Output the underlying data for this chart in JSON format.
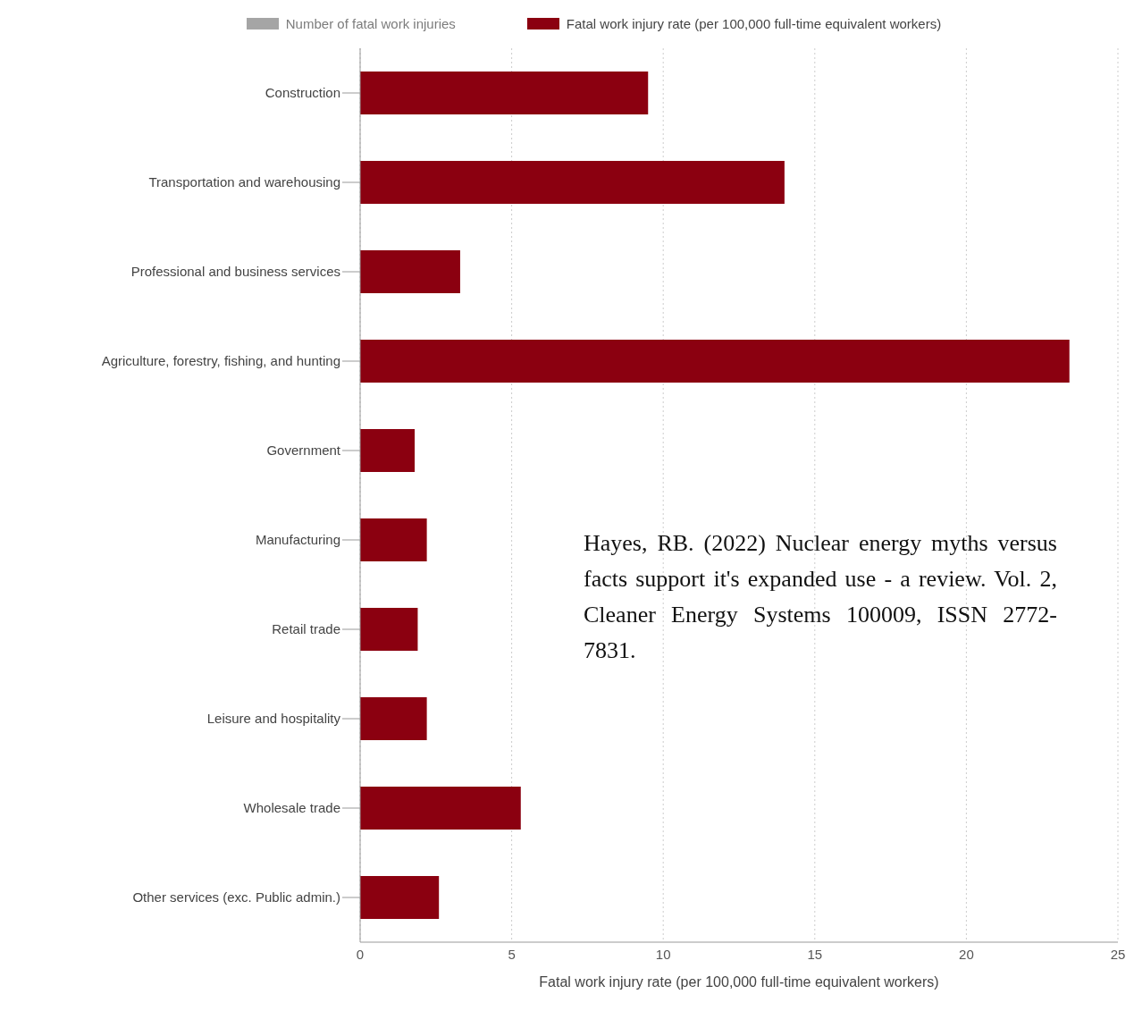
{
  "chart_data": {
    "type": "bar",
    "orientation": "horizontal",
    "categories": [
      "Construction",
      "Transportation and warehousing",
      "Professional and business services",
      "Agriculture, forestry, fishing, and hunting",
      "Government",
      "Manufacturing",
      "Retail trade",
      "Leisure and hospitality",
      "Wholesale trade",
      "Other services (exc. Public admin.)"
    ],
    "series": [
      {
        "name": "Number of fatal work injuries",
        "color": "#808080",
        "values": [
          null,
          null,
          null,
          null,
          null,
          null,
          null,
          null,
          null,
          null
        ]
      },
      {
        "name": "Fatal work injury rate (per 100,000 full-time equivalent workers)",
        "color": "#8b0010",
        "values": [
          9.5,
          14.0,
          3.3,
          23.4,
          1.8,
          2.2,
          1.9,
          2.2,
          5.3,
          2.6
        ]
      }
    ],
    "xlabel": "Fatal work injury rate (per 100,000 full-time equivalent workers)",
    "xlim": [
      0,
      25
    ],
    "xticks": [
      0,
      5,
      10,
      15,
      20,
      25
    ],
    "grid": "x",
    "legend": "top",
    "annotations": [
      "Hayes, RB. (2022) Nuclear energy myths versus facts support it's expanded use - a review. Vol. 2, Cleaner Energy Systems 100009, ISSN 2772-7831."
    ]
  }
}
